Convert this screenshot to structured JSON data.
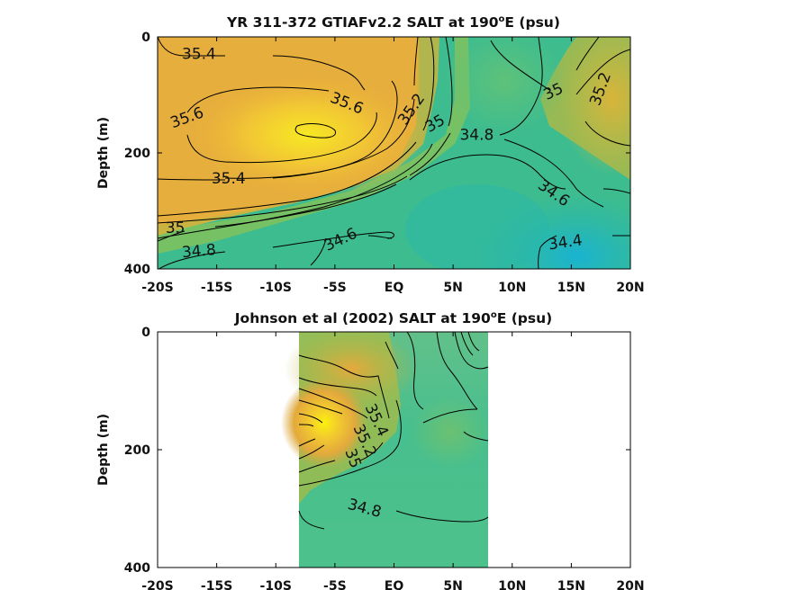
{
  "chart_data": [
    {
      "type": "heatmap",
      "title_prefix": "YR 311-372 GTIAFv2.2 SALT at 190",
      "title_sup": "o",
      "title_suffix": "E (psu)",
      "ylabel": "Depth (m)",
      "xlim": [
        -20,
        20
      ],
      "ylim": [
        0,
        400
      ],
      "y_inverted": true,
      "x_ticks": [
        -20,
        -15,
        -10,
        -5,
        0,
        5,
        10,
        15,
        20
      ],
      "x_tick_labels": [
        "-20S",
        "-15S",
        "-10S",
        "-5S",
        "EQ",
        "5N",
        "10N",
        "15N",
        "20N"
      ],
      "y_ticks": [
        0,
        200,
        400
      ],
      "y_tick_labels": [
        "0",
        "200",
        "400"
      ],
      "colormap": [
        "#1fb3d0",
        "#23b8a8",
        "#62c36a",
        "#b8c33e",
        "#e9ad38",
        "#f7e41c"
      ],
      "color_range": [
        34.3,
        35.8
      ],
      "data_extent_x": [
        -20,
        20
      ],
      "contour_labels": [
        {
          "text": "35.4",
          "lon": -16.5,
          "depth": 30
        },
        {
          "text": "35.6",
          "lon": -17.5,
          "depth": 140
        },
        {
          "text": "35.6",
          "lon": -4,
          "depth": 115
        },
        {
          "text": "35.2",
          "lon": 1.5,
          "depth": 125
        },
        {
          "text": "35",
          "lon": 3.5,
          "depth": 150
        },
        {
          "text": "34.8",
          "lon": 7,
          "depth": 170
        },
        {
          "text": "35",
          "lon": 13.5,
          "depth": 95
        },
        {
          "text": "35.2",
          "lon": 17.5,
          "depth": 90
        },
        {
          "text": "35.4",
          "lon": -14,
          "depth": 245
        },
        {
          "text": "34.6",
          "lon": 13.5,
          "depth": 270
        },
        {
          "text": "35",
          "lon": -18.5,
          "depth": 330
        },
        {
          "text": "34.8",
          "lon": -16.5,
          "depth": 370
        },
        {
          "text": "34.6",
          "lon": -4.5,
          "depth": 350
        },
        {
          "text": "34.4",
          "lon": 14.5,
          "depth": 355
        }
      ]
    },
    {
      "type": "heatmap",
      "title_prefix": "Johnson et al (2002) SALT at 190",
      "title_sup": "o",
      "title_suffix": "E (psu)",
      "ylabel": "Depth (m)",
      "xlim": [
        -20,
        20
      ],
      "ylim": [
        0,
        400
      ],
      "y_inverted": true,
      "x_ticks": [
        -20,
        -15,
        -10,
        -5,
        0,
        5,
        10,
        15,
        20
      ],
      "x_tick_labels": [
        "-20S",
        "-15S",
        "-10S",
        "-5S",
        "EQ",
        "5N",
        "10N",
        "15N",
        "20N"
      ],
      "y_ticks": [
        0,
        200,
        400
      ],
      "y_tick_labels": [
        "0",
        "200",
        "400"
      ],
      "colormap": [
        "#1fb3d0",
        "#23b8a8",
        "#62c36a",
        "#b8c33e",
        "#e9ad38",
        "#f7e41c"
      ],
      "color_range": [
        34.3,
        35.8
      ],
      "data_extent_x": [
        -8,
        8
      ],
      "contour_labels": [
        {
          "text": "35.4",
          "lon": -1.5,
          "depth": 150
        },
        {
          "text": "35.2",
          "lon": -2.5,
          "depth": 185
        },
        {
          "text": "35",
          "lon": -3.5,
          "depth": 215
        },
        {
          "text": "34.8",
          "lon": -2.5,
          "depth": 300
        }
      ]
    }
  ]
}
